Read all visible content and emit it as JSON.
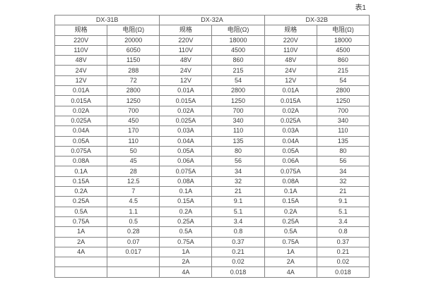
{
  "page": {
    "table_label": "表1"
  },
  "colors": {
    "border": "#848484",
    "text": "#3a3a3a",
    "background": "#ffffff"
  },
  "table": {
    "groups": [
      {
        "name": "DX-31B",
        "columns": [
          "规格",
          "电阻(Ω)"
        ]
      },
      {
        "name": "DX-32A",
        "columns": [
          "规格",
          "电阻(Ω)"
        ]
      },
      {
        "name": "DX-32B",
        "columns": [
          "规格",
          "电阻(Ω)"
        ]
      }
    ],
    "rows": [
      [
        "220V",
        "20000",
        "220V",
        "18000",
        "220V",
        "18000"
      ],
      [
        "110V",
        "6050",
        "110V",
        "4500",
        "110V",
        "4500"
      ],
      [
        "48V",
        "1150",
        "48V",
        "860",
        "48V",
        "860"
      ],
      [
        "24V",
        "288",
        "24V",
        "215",
        "24V",
        "215"
      ],
      [
        "12V",
        "72",
        "12V",
        "54",
        "12V",
        "54"
      ],
      [
        "0.01A",
        "2800",
        "0.01A",
        "2800",
        "0.01A",
        "2800"
      ],
      [
        "0.015A",
        "1250",
        "0.015A",
        "1250",
        "0.015A",
        "1250"
      ],
      [
        "0.02A",
        "700",
        "0.02A",
        "700",
        "0.02A",
        "700"
      ],
      [
        "0.025A",
        "450",
        "0.025A",
        "340",
        "0.025A",
        "340"
      ],
      [
        "0.04A",
        "170",
        "0.03A",
        "110",
        "0.03A",
        "110"
      ],
      [
        "0.05A",
        "110",
        "0.04A",
        "135",
        "0.04A",
        "135"
      ],
      [
        "0.075A",
        "50",
        "0.05A",
        "80",
        "0.05A",
        "80"
      ],
      [
        "0.08A",
        "45",
        "0.06A",
        "56",
        "0.06A",
        "56"
      ],
      [
        "0.1A",
        "28",
        "0.075A",
        "34",
        "0.075A",
        "34"
      ],
      [
        "0.15A",
        "12.5",
        "0.08A",
        "32",
        "0.08A",
        "32"
      ],
      [
        "0.2A",
        "7",
        "0.1A",
        "21",
        "0.1A",
        "21"
      ],
      [
        "0.25A",
        "4.5",
        "0.15A",
        "9.1",
        "0.15A",
        "9.1"
      ],
      [
        "0.5A",
        "1.1",
        "0.2A",
        "5.1",
        "0.2A",
        "5.1"
      ],
      [
        "0.75A",
        "0.5",
        "0.25A",
        "3.4",
        "0.25A",
        "3.4"
      ],
      [
        "1A",
        "0.28",
        "0.5A",
        "0.8",
        "0.5A",
        "0.8"
      ],
      [
        "2A",
        "0.07",
        "0.75A",
        "0.37",
        "0.75A",
        "0.37"
      ],
      [
        "4A",
        "0.017",
        "1A",
        "0.21",
        "1A",
        "0.21"
      ],
      [
        "",
        "",
        "2A",
        "0.02",
        "2A",
        "0.02"
      ],
      [
        "",
        "",
        "4A",
        "0.018",
        "4A",
        "0.018"
      ]
    ]
  }
}
